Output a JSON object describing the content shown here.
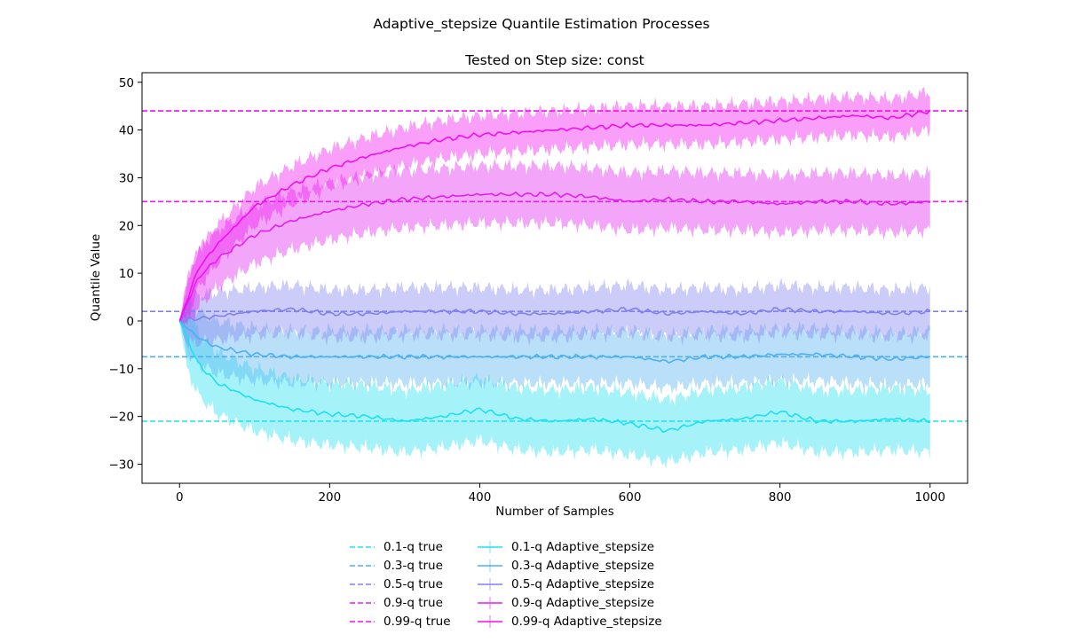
{
  "figure": {
    "suptitle": "Adaptive_stepsize Quantile Estimation Processes"
  },
  "chart_data": {
    "type": "line",
    "title": "Tested on Step size: const",
    "xlabel": "Number of Samples",
    "ylabel": "Quantile Value",
    "xlim": [
      -50,
      1050
    ],
    "ylim": [
      -34,
      52
    ],
    "xticks": [
      0,
      200,
      400,
      600,
      800,
      1000
    ],
    "yticks": [
      -30,
      -20,
      -10,
      0,
      10,
      20,
      30,
      40,
      50
    ],
    "grid": false,
    "legend_position": "below plot, two columns",
    "true_quantiles": [
      {
        "name": "0.1-q true",
        "value": -21,
        "color": "#1fe0f0"
      },
      {
        "name": "0.3-q true",
        "value": -7.5,
        "color": "#4fb0f0"
      },
      {
        "name": "0.5-q true",
        "value": 2,
        "color": "#8080f0"
      },
      {
        "name": "0.9-q true",
        "value": 25,
        "color": "#e020f0"
      },
      {
        "name": "0.99-q true",
        "value": 44,
        "color": "#f010f0"
      }
    ],
    "series": [
      {
        "name": "0.1-q Adaptive_stepsize",
        "color": "#1fe0f0",
        "x": [
          0,
          25,
          50,
          100,
          150,
          200,
          250,
          300,
          350,
          400,
          450,
          500,
          550,
          600,
          650,
          700,
          750,
          800,
          850,
          900,
          950,
          1000
        ],
        "y": [
          0,
          -9,
          -13,
          -16.5,
          -18.5,
          -19.5,
          -20,
          -21,
          -20,
          -18.5,
          -20.5,
          -21,
          -20.5,
          -21.5,
          -23,
          -21,
          -20.5,
          -19,
          -21,
          -21,
          -20.5,
          -21
        ],
        "band": [
          6.5,
          6.5,
          6.5,
          6.5,
          6.5,
          6.5,
          6.5,
          6.5,
          6.5,
          6.5,
          6.5,
          6.5,
          6.5,
          6.5,
          6.5,
          6.5,
          6.5,
          6.5,
          6.5,
          6.5,
          6.5,
          6.5
        ]
      },
      {
        "name": "0.3-q Adaptive_stepsize",
        "color": "#4fb0f0",
        "x": [
          0,
          25,
          50,
          100,
          150,
          200,
          250,
          300,
          350,
          400,
          450,
          500,
          550,
          600,
          650,
          700,
          750,
          800,
          850,
          900,
          950,
          1000
        ],
        "y": [
          0,
          -3.5,
          -5.5,
          -7,
          -7.5,
          -7.5,
          -7.5,
          -7.5,
          -7.5,
          -7.5,
          -7.5,
          -7.5,
          -7.5,
          -7.5,
          -8.5,
          -7.5,
          -7.5,
          -7,
          -7,
          -7.5,
          -8,
          -7.5
        ],
        "band": [
          5.5,
          5.5,
          5.5,
          5.5,
          5.5,
          5.5,
          5.5,
          5.5,
          5.5,
          5.5,
          5.5,
          5.5,
          5.5,
          5.5,
          5.5,
          5.5,
          5.5,
          5.5,
          5.5,
          5.5,
          5.5,
          5.5
        ]
      },
      {
        "name": "0.5-q Adaptive_stepsize",
        "color": "#8080f0",
        "x": [
          0,
          25,
          50,
          100,
          150,
          200,
          250,
          300,
          350,
          400,
          450,
          500,
          550,
          600,
          650,
          700,
          750,
          800,
          850,
          900,
          950,
          1000
        ],
        "y": [
          0,
          0.5,
          1,
          2,
          2.5,
          1.5,
          1.5,
          2,
          2,
          2,
          1.5,
          1.5,
          2,
          2.5,
          1.5,
          2,
          1.5,
          2.5,
          2,
          2,
          1.5,
          2
        ],
        "band": [
          5,
          5,
          5,
          5,
          5,
          5,
          5,
          5,
          5,
          5,
          5,
          5,
          5,
          5,
          5,
          5,
          5,
          5,
          5,
          5,
          5,
          5
        ]
      },
      {
        "name": "0.9-q Adaptive_stepsize",
        "color": "#e020f0",
        "x": [
          0,
          25,
          50,
          100,
          150,
          200,
          250,
          300,
          350,
          400,
          450,
          500,
          550,
          600,
          650,
          700,
          750,
          800,
          850,
          900,
          950,
          1000
        ],
        "y": [
          0,
          9,
          13,
          18,
          21,
          23,
          24.5,
          25.5,
          26,
          26.5,
          26.5,
          26.5,
          26,
          25,
          25.5,
          25,
          25,
          24.5,
          25,
          25,
          24.5,
          25
        ],
        "band": [
          4,
          6,
          6,
          6,
          6,
          6,
          6,
          6,
          6,
          6,
          6,
          6,
          6,
          6,
          6,
          6,
          6,
          6,
          6,
          6,
          6,
          6
        ]
      },
      {
        "name": "0.99-q Adaptive_stepsize",
        "color": "#f010f0",
        "x": [
          0,
          25,
          50,
          100,
          150,
          200,
          250,
          300,
          350,
          400,
          450,
          500,
          550,
          600,
          650,
          700,
          750,
          800,
          850,
          900,
          950,
          1000
        ],
        "y": [
          0,
          11,
          16,
          24,
          28.5,
          32,
          34.5,
          36.5,
          38,
          39,
          39.5,
          40,
          40.5,
          41,
          41,
          41,
          41.5,
          42,
          42.5,
          43,
          42.5,
          44
        ],
        "band": [
          4,
          4,
          4,
          4,
          4,
          4,
          4,
          4,
          4,
          4,
          4,
          4,
          4,
          4,
          4,
          4,
          4,
          4,
          4,
          4,
          4,
          4
        ]
      }
    ]
  }
}
